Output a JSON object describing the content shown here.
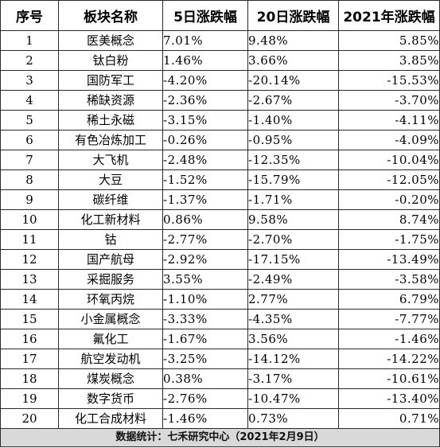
{
  "table": {
    "headers": [
      "序号",
      "板块名称",
      "5日涨跌幅",
      "20日涨跌幅",
      "2021年涨跌幅"
    ],
    "rows": [
      [
        "1",
        "医美概念",
        "7.01%",
        "9.48%",
        "5.85%"
      ],
      [
        "2",
        "钛白粉",
        "1.46%",
        "3.66%",
        "3.85%"
      ],
      [
        "3",
        "国防军工",
        "-4.20%",
        "-20.14%",
        "-15.53%"
      ],
      [
        "4",
        "稀缺资源",
        "-2.36%",
        "-2.67%",
        "-3.70%"
      ],
      [
        "5",
        "稀土永磁",
        "-3.15%",
        "-1.40%",
        "-4.11%"
      ],
      [
        "6",
        "有色冶炼加工",
        "-0.26%",
        "-0.95%",
        "-4.09%"
      ],
      [
        "7",
        "大飞机",
        "-2.48%",
        "-12.35%",
        "-10.04%"
      ],
      [
        "8",
        "大豆",
        "-1.52%",
        "-15.79%",
        "-12.05%"
      ],
      [
        "9",
        "碳纤维",
        "-1.37%",
        "-1.71%",
        "-0.20%"
      ],
      [
        "10",
        "化工新材料",
        "0.86%",
        "9.58%",
        "8.74%"
      ],
      [
        "11",
        "钴",
        "-2.77%",
        "-2.70%",
        "-1.75%"
      ],
      [
        "12",
        "国产航母",
        "-2.92%",
        "-17.15%",
        "-13.49%"
      ],
      [
        "13",
        "采掘服务",
        "3.55%",
        "-2.49%",
        "-3.58%"
      ],
      [
        "14",
        "环氧丙烷",
        "-1.10%",
        "2.77%",
        "6.79%"
      ],
      [
        "15",
        "小金属概念",
        "-3.33%",
        "-4.35%",
        "-7.77%"
      ],
      [
        "16",
        "氟化工",
        "-1.67%",
        "3.56%",
        "-1.46%"
      ],
      [
        "17",
        "航空发动机",
        "-3.25%",
        "-14.12%",
        "-14.22%"
      ],
      [
        "18",
        "煤炭概念",
        "0.38%",
        "-3.17%",
        "-10.61%"
      ],
      [
        "19",
        "数字货币",
        "-2.76%",
        "-10.47%",
        "-13.40%"
      ],
      [
        "20",
        "化工合成材料",
        "-1.46%",
        "0.73%",
        "0.71%"
      ]
    ],
    "footer": "数据统计：七禾研究中心（2021年2月9日）"
  }
}
